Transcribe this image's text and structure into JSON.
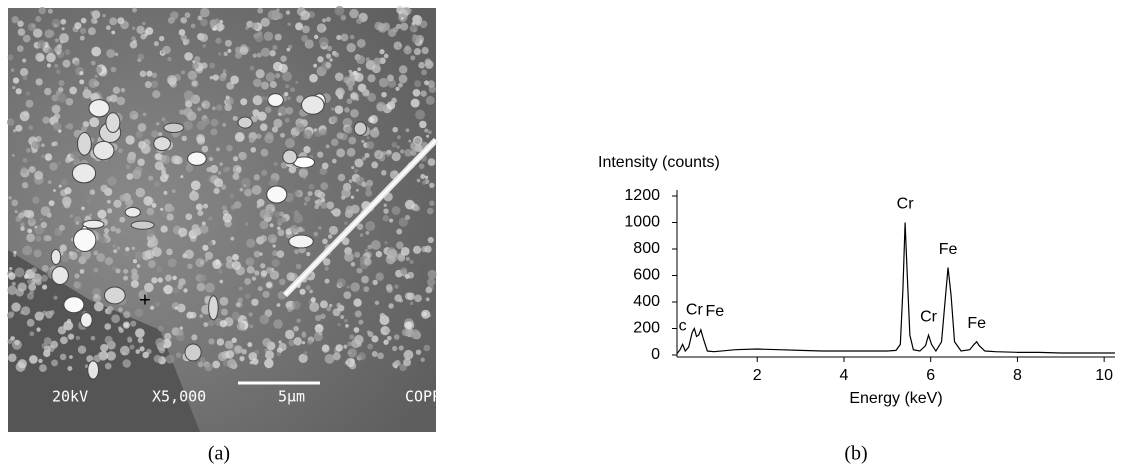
{
  "image": {
    "labels": [
      "20kV",
      "X5,000",
      "5μm",
      "COPPE"
    ],
    "marker": "+"
  },
  "captions": [
    "(a)",
    "(b)"
  ],
  "chart_data": {
    "type": "line",
    "y_label": "Intensity (counts)",
    "x_label": "Energy (keV)",
    "x": [
      0.15,
      0.22,
      0.28,
      0.34,
      0.42,
      0.5,
      0.55,
      0.6,
      0.65,
      0.7,
      0.76,
      0.85,
      1.0,
      1.5,
      2.0,
      2.5,
      3.0,
      3.5,
      4.0,
      4.5,
      5.0,
      5.2,
      5.3,
      5.36,
      5.41,
      5.46,
      5.52,
      5.6,
      5.75,
      5.88,
      5.95,
      6.02,
      6.12,
      6.25,
      6.33,
      6.4,
      6.47,
      6.55,
      6.7,
      6.9,
      7.0,
      7.06,
      7.12,
      7.25,
      7.5,
      8.0,
      8.5,
      9.0,
      9.5,
      10.0,
      10.25
    ],
    "values": [
      10,
      40,
      80,
      30,
      60,
      170,
      200,
      140,
      150,
      190,
      120,
      30,
      25,
      40,
      45,
      40,
      35,
      30,
      30,
      30,
      30,
      35,
      80,
      500,
      1000,
      600,
      150,
      40,
      30,
      70,
      150,
      80,
      30,
      100,
      400,
      660,
      450,
      100,
      30,
      40,
      80,
      100,
      70,
      30,
      25,
      20,
      20,
      15,
      15,
      15,
      15
    ],
    "color": "#000000",
    "xlim": [
      0.15,
      10.25
    ],
    "ylim": [
      0,
      1200
    ],
    "xticks": [
      2,
      4,
      6,
      8,
      10
    ],
    "yticks": [
      0,
      200,
      400,
      600,
      800,
      1000,
      1200
    ],
    "annotations": [
      {
        "text": "c",
        "x": 0.28
      },
      {
        "text": "Cr",
        "x": 0.55
      },
      {
        "text": "Fe",
        "x": 0.7
      },
      {
        "text": "Cr",
        "x": 5.41
      },
      {
        "text": "Cr",
        "x": 5.95
      },
      {
        "text": "Fe",
        "x": 6.4
      },
      {
        "text": "Fe",
        "x": 7.06
      }
    ]
  }
}
